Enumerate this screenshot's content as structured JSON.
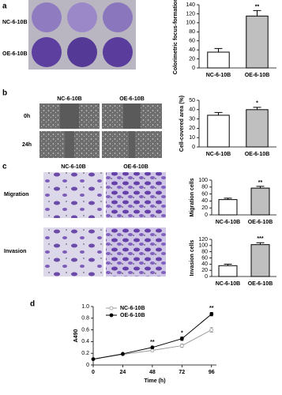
{
  "figure": {
    "panel_labels": [
      "a",
      "b",
      "c",
      "d"
    ],
    "plate_labels": [
      "NC-6-10B",
      "OE-6-10B"
    ],
    "wound_headers": [
      "NC-6-10B",
      "OE-6-10B"
    ],
    "wound_rows": [
      "0h",
      "24h"
    ],
    "transwell_headers": [
      "NC-6-10B",
      "OE-6-10B"
    ],
    "transwell_rows": [
      "Migration",
      "Invasion"
    ]
  },
  "chart_data": [
    {
      "type": "bar",
      "ylabel": "Colorimetric focus-formation",
      "categories": [
        "NC-6-10B",
        "OE-6-10B"
      ],
      "values": [
        35,
        115
      ],
      "errors": [
        8,
        12
      ],
      "colors": [
        "#ffffff",
        "#bfbfbf"
      ],
      "annotation": "**",
      "ylim": [
        0,
        140
      ],
      "yticks": [
        0,
        20,
        40,
        60,
        80,
        100,
        120,
        140
      ]
    },
    {
      "type": "bar",
      "ylabel": "Cell-covered area (%)",
      "categories": [
        "NC-6-10B",
        "OE-6-10B"
      ],
      "values": [
        34,
        40
      ],
      "errors": [
        3,
        2.5
      ],
      "colors": [
        "#ffffff",
        "#bfbfbf"
      ],
      "annotation": "*",
      "ylim": [
        0,
        50
      ],
      "yticks": [
        0,
        10,
        20,
        30,
        40,
        50
      ]
    },
    {
      "type": "bar",
      "ylabel": "Migration cells",
      "categories": [
        "NC-6-10B",
        "OE-6-10B"
      ],
      "values": [
        44,
        77
      ],
      "errors": [
        4,
        5
      ],
      "colors": [
        "#ffffff",
        "#bfbfbf"
      ],
      "annotation": "**",
      "ylim": [
        0,
        100
      ],
      "yticks": [
        0,
        20,
        40,
        60,
        80,
        100
      ]
    },
    {
      "type": "bar",
      "ylabel": "Invasion cells",
      "categories": [
        "NC-6-10B",
        "OE-6-10B"
      ],
      "values": [
        35,
        103
      ],
      "errors": [
        5,
        6
      ],
      "colors": [
        "#ffffff",
        "#bfbfbf"
      ],
      "annotation": "***",
      "ylim": [
        0,
        120
      ],
      "yticks": [
        0,
        20,
        40,
        60,
        80,
        100,
        120
      ]
    },
    {
      "type": "line",
      "xlabel": "Time (h)",
      "ylabel": "A490",
      "x": [
        0,
        24,
        48,
        72,
        96
      ],
      "series": [
        {
          "name": "NC-6-10B",
          "color": "#999999",
          "values": [
            0.1,
            0.18,
            0.25,
            0.33,
            0.6
          ],
          "errors": [
            0.01,
            0.01,
            0.02,
            0.03,
            0.04
          ]
        },
        {
          "name": "OE-6-10B",
          "color": "#000000",
          "values": [
            0.1,
            0.19,
            0.3,
            0.45,
            0.87
          ],
          "errors": [
            0.01,
            0.01,
            0.02,
            0.03,
            0.03
          ]
        }
      ],
      "annotations": [
        {
          "x": 48,
          "text": "**"
        },
        {
          "x": 72,
          "text": "*"
        },
        {
          "x": 96,
          "text": "**"
        }
      ],
      "legend": "upper left",
      "xlim": [
        0,
        100
      ],
      "xticks": [
        0,
        24,
        48,
        72,
        96
      ],
      "ylim": [
        0,
        1
      ],
      "yticks": [
        0,
        0.2,
        0.4,
        0.6,
        0.8,
        {
          "value": 1,
          "label": "1.0"
        }
      ]
    }
  ]
}
